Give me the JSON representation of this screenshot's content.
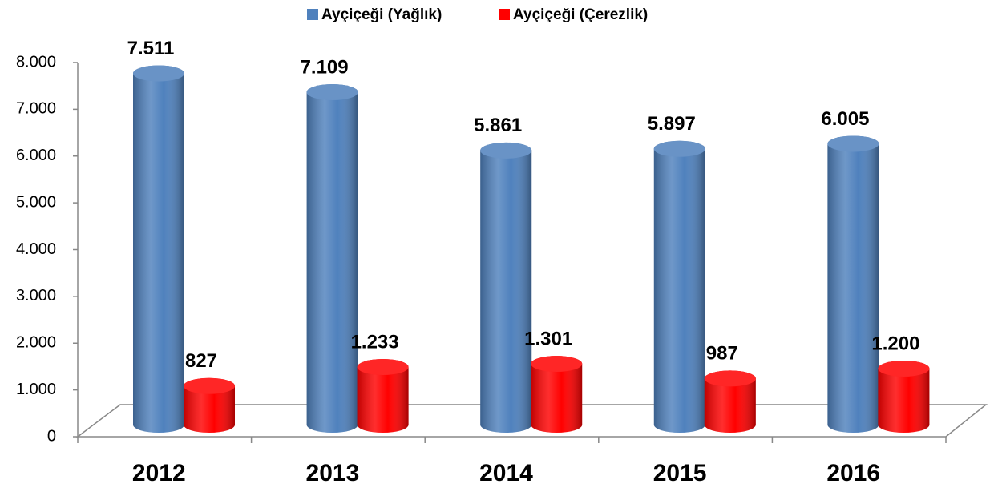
{
  "chart_data": {
    "type": "bar3d",
    "categories": [
      "2012",
      "2013",
      "2014",
      "2015",
      "2016"
    ],
    "series": [
      {
        "name": "Ayçiçeği (Yağlık)",
        "color": "#4f81bd",
        "values": [
          7511,
          7109,
          5861,
          5897,
          6005
        ],
        "value_labels": [
          "7.511",
          "7.109",
          "5.861",
          "5.897",
          "6.005"
        ]
      },
      {
        "name": "Ayçiçeği (Çerezlik)",
        "color": "#ff0000",
        "values": [
          827,
          1233,
          1301,
          987,
          1200
        ],
        "value_labels": [
          "827",
          "1.233",
          "1.301",
          "987",
          "1.200"
        ]
      }
    ],
    "ylim": [
      0,
      8000
    ],
    "yticks": [
      0,
      {
        "value": 1000,
        "label": "1.000"
      },
      {
        "value": 2000,
        "label": "2.000"
      },
      {
        "value": 3000,
        "label": "3.000"
      },
      {
        "value": 4000,
        "label": "4.000"
      },
      {
        "value": 5000,
        "label": "5.000"
      },
      {
        "value": 6000,
        "label": "6.000"
      },
      {
        "value": 7000,
        "label": "7.000"
      },
      {
        "value": 8000,
        "label": "8.000"
      }
    ],
    "legend": "top"
  }
}
